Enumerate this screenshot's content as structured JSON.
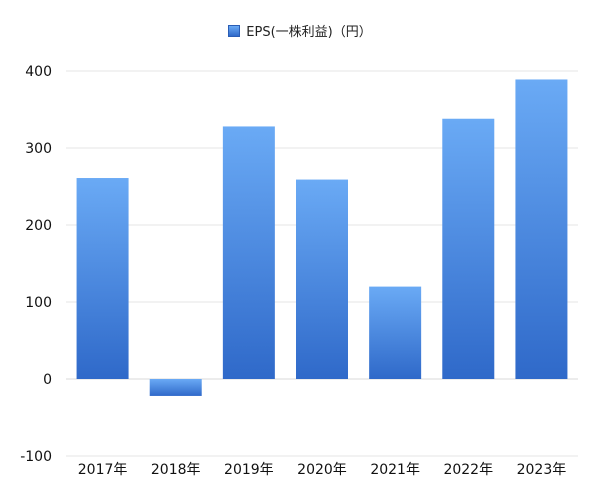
{
  "chart_data": {
    "type": "bar",
    "categories": [
      "2017年",
      "2018年",
      "2019年",
      "2020年",
      "2021年",
      "2022年",
      "2023年"
    ],
    "series": [
      {
        "name": "EPS(一株利益)（円）",
        "values": [
          261,
          -22,
          328,
          259,
          120,
          338,
          389
        ]
      }
    ],
    "ylim": [
      -100,
      400
    ],
    "yticks": [
      -100,
      0,
      100,
      200,
      300,
      400
    ],
    "grid": true,
    "legend": "top-center",
    "colors": {
      "bar_top": "#6aaaf5",
      "bar_bottom": "#2f69c9",
      "grid": "#e6e6e6",
      "axis_text": "#111111"
    }
  }
}
